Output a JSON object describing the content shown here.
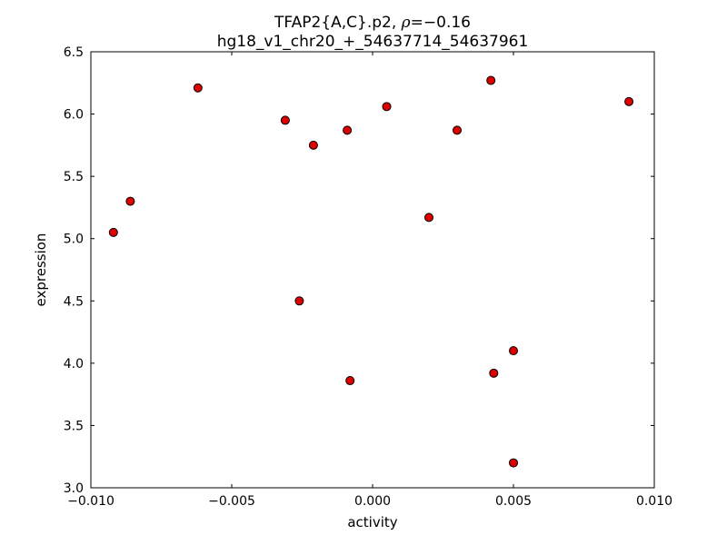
{
  "chart_data": {
    "type": "scatter",
    "title_prefix": "TFAP2{A,C}.p2, ",
    "title_rho": "ρ",
    "title_rho_value": "=−0.16",
    "title_line2": "hg18_v1_chr20_+_54637714_54637961",
    "xlabel": "activity",
    "ylabel": "expression",
    "xlim": [
      -0.01,
      0.01
    ],
    "ylim": [
      3.0,
      6.5
    ],
    "xticks": [
      -0.01,
      -0.005,
      0.0,
      0.005,
      0.01
    ],
    "xtick_labels": [
      "−0.010",
      "−0.005",
      "0.000",
      "0.005",
      "0.010"
    ],
    "yticks": [
      3.0,
      3.5,
      4.0,
      4.5,
      5.0,
      5.5,
      6.0,
      6.5
    ],
    "ytick_labels": [
      "3.0",
      "3.5",
      "4.0",
      "4.5",
      "5.0",
      "5.5",
      "6.0",
      "6.5"
    ],
    "grid": false,
    "legend": null,
    "marker": {
      "shape": "circle",
      "face_color": "#dd0000",
      "edge_color": "#000000",
      "radius_px": 4.5
    },
    "axes_color": "#000000",
    "background_color": "#ffffff",
    "points": [
      [
        -0.0092,
        5.05
      ],
      [
        -0.0086,
        5.3
      ],
      [
        -0.0062,
        6.21
      ],
      [
        -0.0031,
        5.95
      ],
      [
        -0.0026,
        4.5
      ],
      [
        -0.0021,
        5.75
      ],
      [
        -0.0009,
        5.87
      ],
      [
        -0.0008,
        3.86
      ],
      [
        0.0005,
        6.06
      ],
      [
        0.002,
        5.17
      ],
      [
        0.003,
        5.87
      ],
      [
        0.0042,
        6.27
      ],
      [
        0.0043,
        3.92
      ],
      [
        0.005,
        4.1
      ],
      [
        0.005,
        3.2
      ],
      [
        0.0091,
        6.1
      ]
    ]
  }
}
